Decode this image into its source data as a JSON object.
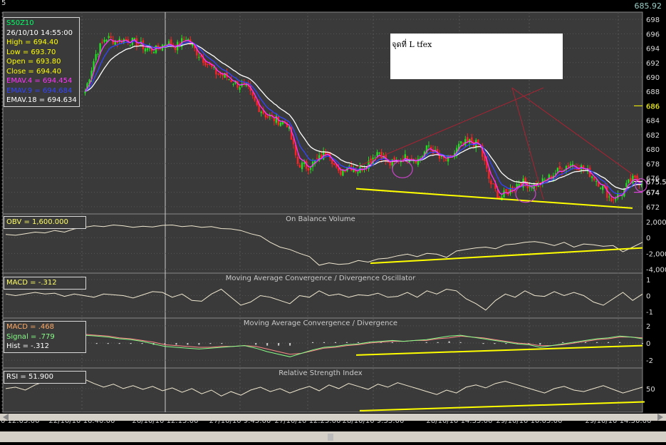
{
  "window": {
    "corner_label": "5",
    "last_price": "685.92"
  },
  "note_box": {
    "text": "จุดที่ L tfex"
  },
  "price_info": {
    "symbol": "S50Z10",
    "datetime": "26/10/10 14:55:00",
    "high": "High  = 694.40",
    "low": "Low   = 693.70",
    "open": "Open = 693.80",
    "close": "Close = 694.40",
    "emav4": "EMAV.4 = 694.454",
    "emav9": "EMAV.9 = 694.684",
    "emav18": "EMAV.18 = 694.634"
  },
  "obv_info": "OBV = 1,600.000",
  "macd_osc_info": "MACD = -.312",
  "macd_info": {
    "macd": "MACD = .468",
    "signal": "Signal = .779",
    "hist": "Hist = -.312"
  },
  "rsi_info": "RSI = 51.900",
  "colors": {
    "background": "#000000",
    "panel": "#3a3a3a",
    "bull_candle": "#22dd22",
    "bear_candle": "#ff2222",
    "emav4": "#ff33ff",
    "emav9": "#3344ff",
    "emav18": "#ffffff",
    "trendline": "#ffff00",
    "pattern": "#aa2233",
    "circle": "#cc44cc",
    "indicator_line": "#f0e8d0",
    "macd_signal": "#ff8888",
    "macd_line": "#88ff88"
  },
  "chart_data": [
    {
      "type": "candlestick",
      "title": "S50Z10",
      "series_names": [
        "EMAV.4",
        "EMAV.9",
        "EMAV.18"
      ],
      "ylim": [
        671,
        699
      ],
      "y_ticks": [
        698,
        696,
        694,
        692,
        690,
        688,
        686,
        684,
        682,
        680,
        678,
        676,
        674,
        672
      ],
      "current_value_labels": [
        "686",
        "675.5",
        "674"
      ],
      "x_tick_labels": [
        "0 12:05:00",
        "22/10/10 16:40:00",
        "26/10/10 12:15:00",
        "27/10/10 9:45:00",
        "27/10/10 12:25:00",
        "28/10/10 9:55:00",
        "28/10/10 14:35:00",
        "29/10/10 10:05:00",
        "29/10/10 14:50:00"
      ],
      "close_path": [
        688,
        693,
        695.5,
        695,
        695.2,
        694.8,
        694,
        693.8,
        694.8,
        694.2,
        695.5,
        693.5,
        692,
        690.5,
        690,
        689,
        688.5,
        686,
        684.5,
        684,
        683.5,
        678,
        677.5,
        678.5,
        680,
        676.5,
        677.8,
        677,
        678.2,
        679.8,
        677.8,
        678.5,
        679,
        678.5,
        680.5,
        678.7,
        678.3,
        680.5,
        681,
        680.5,
        675.5,
        673.2,
        674.3,
        675.5,
        675,
        675.2,
        676.2,
        677.2,
        678,
        677.5,
        676.5,
        675,
        673,
        673.8,
        675.8,
        675.5
      ],
      "annotations": [
        {
          "type": "trendline",
          "from": [
            "28/10/10 9:55:00",
            674.5
          ],
          "to": [
            "29/10/10 14:50:00",
            671.8
          ]
        },
        {
          "type": "line",
          "from": [
            "28/10/10 9:55:00",
            677.5
          ],
          "to": [
            "29/10/10 10:05:00",
            688.5
          ]
        },
        {
          "type": "line",
          "from": [
            "29/10/10 10:05:00",
            688.5
          ],
          "to": [
            "29/10/10 14:50:00",
            676.5
          ]
        },
        {
          "type": "line",
          "from": [
            "29/10/10 10:05:00",
            688.5
          ],
          "to": [
            "29/10/10 10:05:00",
            673
          ]
        }
      ]
    },
    {
      "type": "line",
      "title": "On Balance Volume",
      "ylim": [
        -4500,
        3000
      ],
      "y_ticks": [
        2000,
        0,
        -2000,
        -4000
      ],
      "y_tick_labels": [
        "2,000",
        "0",
        "-2,000",
        "-4,000"
      ],
      "values": [
        400,
        300,
        500,
        700,
        600,
        900,
        700,
        1100,
        1300,
        1500,
        1400,
        1600,
        1500,
        1300,
        1450,
        1350,
        1550,
        1600,
        1400,
        1500,
        1300,
        1400,
        1150,
        1100,
        900,
        500,
        200,
        -600,
        -1200,
        -1500,
        -2000,
        -2400,
        -3500,
        -3200,
        -3400,
        -3300,
        -2900,
        -3100,
        -2700,
        -2600,
        -2300,
        -2100,
        -2400,
        -2000,
        -2100,
        -2500,
        -1700,
        -1500,
        -1300,
        -1200,
        -1400,
        -900,
        -800,
        -600,
        -500,
        -700,
        -1000,
        -600,
        -1200,
        -800,
        -900,
        -1100,
        -1000,
        -1800,
        -1200,
        -600
      ]
    },
    {
      "type": "line",
      "title": "Moving Average Convergence / Divergence Oscillator",
      "ylim": [
        -1.4,
        1.4
      ],
      "y_ticks": [
        1,
        0,
        -1
      ],
      "values": [
        0.1,
        0.0,
        0.1,
        0.2,
        0.1,
        0.15,
        -0.05,
        0.1,
        0.0,
        -0.1,
        0.1,
        0.05,
        0.0,
        -0.15,
        0.05,
        0.25,
        0.2,
        -0.1,
        0.1,
        -0.3,
        -0.35,
        0.1,
        0.4,
        -0.1,
        -0.6,
        -0.4,
        0.0,
        -0.1,
        -0.3,
        -0.5,
        0.0,
        -0.1,
        0.3,
        0.0,
        0.1,
        -0.1,
        0.05,
        0.0,
        0.15,
        -0.1,
        -0.05,
        0.2,
        -0.1,
        0.3,
        0.1,
        0.4,
        0.3,
        -0.2,
        -0.5,
        -0.9,
        -0.3,
        0.1,
        -0.1,
        0.3,
        0.0,
        -0.05,
        0.25,
        0.0,
        0.2,
        0.0,
        -0.4,
        -0.6,
        -0.2,
        0.2,
        -0.3,
        0.1
      ]
    },
    {
      "type": "line+bar",
      "title": "Moving Average Convergence / Divergence",
      "series_names": [
        "MACD",
        "Signal",
        "Hist"
      ],
      "ylim": [
        -2.9,
        2.9
      ],
      "y_ticks": [
        2,
        0,
        -2
      ],
      "macd_values": [
        0.6,
        1.2,
        1.5,
        1.6,
        1.2,
        1.1,
        1.0,
        0.9,
        0.8,
        0.7,
        0.5,
        0.4,
        0.2,
        -0.1,
        -0.4,
        -0.5,
        -0.6,
        -0.7,
        -0.6,
        -0.5,
        -0.4,
        -0.3,
        -0.6,
        -1.0,
        -1.3,
        -1.6,
        -1.2,
        -0.8,
        -0.5,
        -0.4,
        -0.2,
        -0.1,
        0.1,
        0.2,
        0.3,
        0.2,
        0.3,
        0.4,
        0.6,
        0.8,
        0.9,
        0.7,
        0.5,
        0.3,
        0.1,
        -0.1,
        -0.2,
        -0.5,
        -0.3,
        -0.1,
        0.1,
        0.3,
        0.5,
        0.6,
        0.8,
        0.7,
        0.5
      ],
      "signal_values": [
        0.4,
        0.9,
        1.2,
        1.4,
        1.3,
        1.2,
        1.1,
        1.0,
        0.9,
        0.8,
        0.6,
        0.5,
        0.3,
        0.1,
        -0.2,
        -0.3,
        -0.4,
        -0.5,
        -0.5,
        -0.4,
        -0.4,
        -0.3,
        -0.4,
        -0.7,
        -1.0,
        -1.3,
        -1.2,
        -0.9,
        -0.6,
        -0.5,
        -0.3,
        -0.2,
        0.0,
        0.1,
        0.2,
        0.2,
        0.3,
        0.3,
        0.5,
        0.6,
        0.8,
        0.7,
        0.6,
        0.4,
        0.2,
        0.0,
        -0.1,
        -0.3,
        -0.3,
        -0.2,
        0.0,
        0.2,
        0.4,
        0.5,
        0.7,
        0.7,
        0.6
      ]
    },
    {
      "type": "line",
      "title": "Relative Strength Index",
      "ylim": [
        18,
        78
      ],
      "y_ticks": [
        50
      ],
      "values": [
        50,
        52,
        48,
        55,
        60,
        58,
        62,
        59,
        63,
        57,
        52,
        56,
        50,
        54,
        49,
        53,
        47,
        51,
        45,
        50,
        43,
        48,
        40,
        46,
        41,
        48,
        52,
        46,
        50,
        44,
        49,
        53,
        47,
        55,
        50,
        57,
        53,
        49,
        56,
        52,
        58,
        54,
        50,
        46,
        42,
        48,
        44,
        52,
        55,
        51,
        57,
        60,
        56,
        52,
        48,
        44,
        50,
        53,
        48,
        46,
        50,
        54,
        49,
        44,
        48,
        52
      ]
    }
  ]
}
